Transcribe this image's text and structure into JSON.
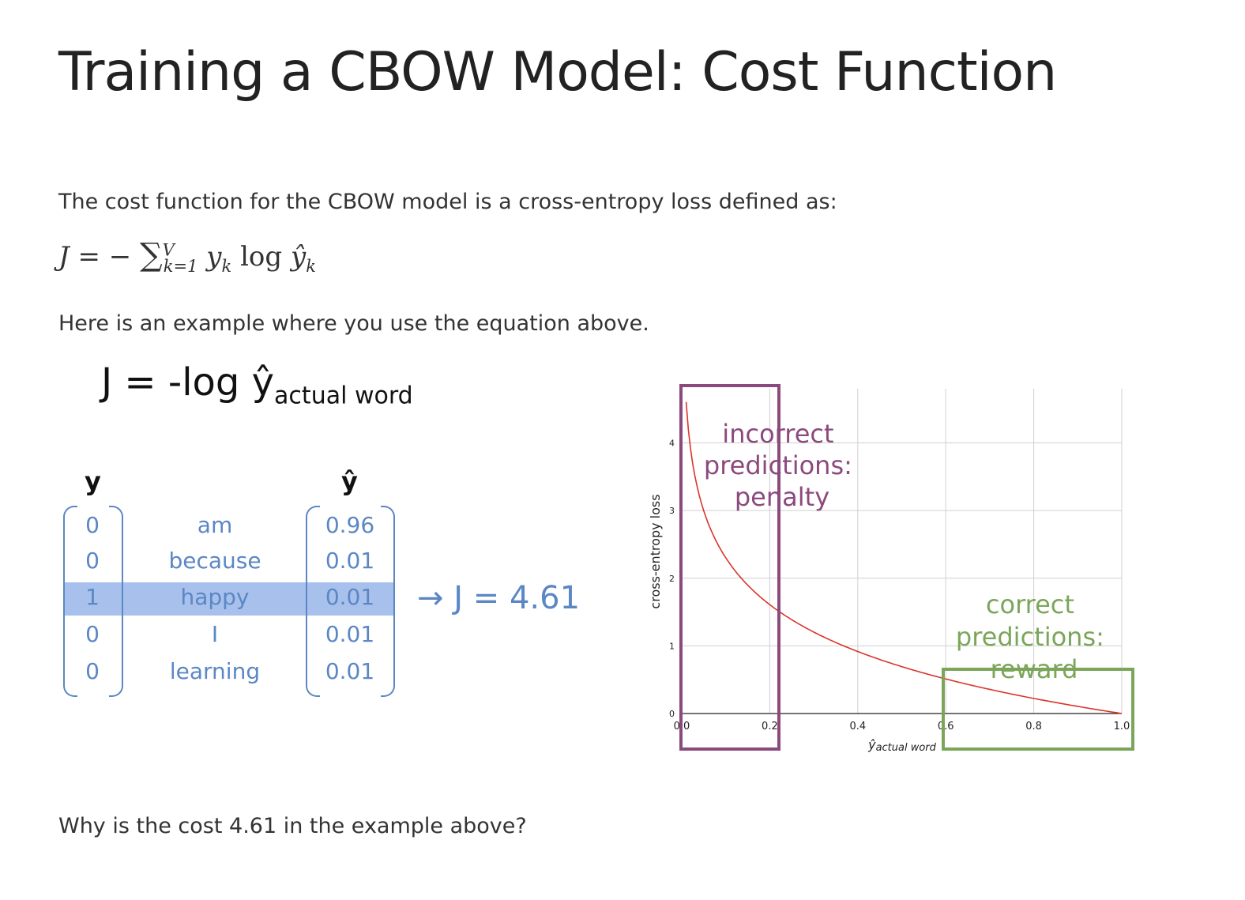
{
  "page": {
    "title": "Training a CBOW Model: Cost Function",
    "intro": "The cost function for the CBOW model is a cross-entropy loss defined as:",
    "formula": {
      "lhs": "J",
      "equals": "= −",
      "sum": "∑",
      "sum_upper": "V",
      "sum_lower": "k=1",
      "term_y": "y",
      "term_y_sub": "k",
      "log": "log",
      "term_yhat": "ŷ",
      "term_yhat_sub": "k"
    },
    "example_intro": "Here is an example where you use the equation above.",
    "question": "Why is the cost 4.61 in the example above?"
  },
  "example": {
    "equation_main": "J = -log ŷ",
    "equation_sub": "actual word",
    "y_header": "y",
    "yhat_header": "ŷ",
    "rows": [
      {
        "y": "0",
        "word": "am",
        "yhat": "0.96",
        "highlighted": false
      },
      {
        "y": "0",
        "word": "because",
        "yhat": "0.01",
        "highlighted": false
      },
      {
        "y": "1",
        "word": "happy",
        "yhat": "0.01",
        "highlighted": true
      },
      {
        "y": "0",
        "word": "I",
        "yhat": "0.01",
        "highlighted": false
      },
      {
        "y": "0",
        "word": "learning",
        "yhat": "0.01",
        "highlighted": false
      }
    ],
    "result": "→ J = 4.61",
    "text_color": "#5b87c5",
    "highlight_color": "#a8c0ec"
  },
  "chart_data": {
    "type": "line",
    "function": "-log(x)",
    "series": [
      {
        "x": [
          0.01,
          0.02,
          0.03,
          0.05,
          0.08,
          0.1,
          0.15,
          0.2,
          0.3,
          0.4,
          0.5,
          0.6,
          0.7,
          0.8,
          0.9,
          1.0
        ],
        "values": [
          4.61,
          3.91,
          3.51,
          3.0,
          2.53,
          2.3,
          1.9,
          1.61,
          1.2,
          0.92,
          0.69,
          0.51,
          0.36,
          0.22,
          0.11,
          0.0
        ]
      }
    ],
    "xlim": [
      0.0,
      1.0
    ],
    "ylim": [
      0,
      4.8
    ],
    "xticks": [
      "0.0",
      "0.2",
      "0.4",
      "0.6",
      "0.8",
      "1.0"
    ],
    "yticks": [
      "0",
      "1",
      "2",
      "3",
      "4"
    ],
    "ylabel": "cross-entropy loss",
    "xlabel_main": "ŷ",
    "xlabel_sub": "actual word",
    "grid": true,
    "line_color": "#d9352b",
    "annotations": [
      {
        "text_lines": [
          "incorrect",
          "predictions:",
          "penalty"
        ],
        "color": "#8b4a7d",
        "x_range": [
          0.0,
          0.22
        ]
      },
      {
        "text_lines": [
          "correct",
          "predictions:",
          "reward"
        ],
        "color": "#7ba65a",
        "x_range": [
          0.6,
          1.0
        ]
      }
    ]
  }
}
